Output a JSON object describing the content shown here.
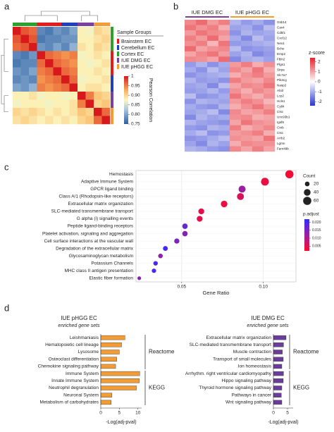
{
  "chart_data": [
    {
      "type": "heatmap",
      "panel_label": "a",
      "values": [
        [
          1,
          0.97,
          0.96,
          0.78,
          0.77,
          0.79,
          0.78,
          0.8,
          0.88,
          0.87,
          0.9,
          0.89
        ],
        [
          0.97,
          1,
          0.97,
          0.77,
          0.78,
          0.78,
          0.79,
          0.79,
          0.88,
          0.88,
          0.89,
          0.9
        ],
        [
          0.96,
          0.97,
          1,
          0.79,
          0.78,
          0.8,
          0.78,
          0.81,
          0.89,
          0.88,
          0.9,
          0.89
        ],
        [
          0.78,
          0.77,
          0.79,
          1,
          0.96,
          0.95,
          0.94,
          0.95,
          0.87,
          0.88,
          0.89,
          0.88
        ],
        [
          0.77,
          0.78,
          0.78,
          0.96,
          1,
          0.96,
          0.95,
          0.94,
          0.88,
          0.87,
          0.88,
          0.89
        ],
        [
          0.79,
          0.78,
          0.8,
          0.95,
          0.96,
          1,
          0.96,
          0.95,
          0.88,
          0.88,
          0.89,
          0.88
        ],
        [
          0.78,
          0.79,
          0.78,
          0.94,
          0.95,
          0.96,
          1,
          0.96,
          0.87,
          0.88,
          0.88,
          0.89
        ],
        [
          0.8,
          0.79,
          0.81,
          0.95,
          0.94,
          0.95,
          0.96,
          1,
          0.88,
          0.89,
          0.89,
          0.88
        ],
        [
          0.88,
          0.88,
          0.89,
          0.87,
          0.88,
          0.88,
          0.87,
          0.88,
          1,
          0.95,
          0.91,
          0.9
        ],
        [
          0.87,
          0.88,
          0.88,
          0.88,
          0.87,
          0.88,
          0.88,
          0.89,
          0.95,
          1,
          0.9,
          0.91
        ],
        [
          0.9,
          0.89,
          0.9,
          0.89,
          0.88,
          0.89,
          0.88,
          0.89,
          0.91,
          0.9,
          1,
          0.96
        ],
        [
          0.89,
          0.9,
          0.89,
          0.88,
          0.89,
          0.88,
          0.89,
          0.88,
          0.9,
          0.91,
          0.96,
          1
        ]
      ],
      "column_colors": [
        "#2ca02c",
        "#2ca02c",
        "#2ca02c",
        "#e41a1c",
        "#e41a1c",
        "#e41a1c",
        "#1f3fbf",
        "#1f3fbf",
        "#7b3fa0",
        "#7b3fa0",
        "#f39c34",
        "#f39c34"
      ],
      "legend_title": "Sample Groups",
      "groups": [
        {
          "name": "Brainstem EC",
          "color": "#e41a1c"
        },
        {
          "name": "Cerebellum EC",
          "color": "#1f3fbf"
        },
        {
          "name": "Cortex EC",
          "color": "#2ca02c"
        },
        {
          "name": "IUE DMG EC",
          "color": "#7b3fa0"
        },
        {
          "name": "IUE pHGG EC",
          "color": "#f39c34"
        }
      ],
      "colorbar_label": "Pearson Correlation",
      "zlim": [
        0.75,
        1
      ],
      "zticks": [
        1,
        {
          "value": 0.9,
          "label": "0.90"
        },
        0.95,
        0.85,
        {
          "value": 0.8,
          "label": "0.80"
        },
        0.75
      ]
    },
    {
      "type": "heatmap",
      "panel_label": "b",
      "column_groups": [
        {
          "name": "IUE DMG EC",
          "color": "#7b3fa0"
        },
        {
          "name": "IUE pHGG EC",
          "color": "#f39c34"
        }
      ],
      "categories": [
        "Gsb14",
        "Cav4",
        "Cdkf1",
        "Cxcl12",
        "Neo1",
        "Bche",
        "Emp2",
        "Fbln2",
        "Plgs1",
        "Sirpa",
        "Slc7a7",
        "Pik3cg",
        "Nasp2",
        "Abi3",
        "Lcp2",
        "Hcls1",
        "Cytl4",
        "Ctsc",
        "Unc93b1",
        "Igsf8",
        "Ctnb",
        "Ctsc",
        "Arrb2",
        "Lgmn",
        "Fam49b"
      ],
      "values": [
        [
          1.3,
          1.6,
          1.1,
          1.4,
          -0.9,
          -1.2,
          -1.0,
          -1.3
        ],
        [
          1.5,
          1.2,
          1.4,
          0.9,
          -1.1,
          -1.0,
          -1.3,
          -0.8
        ],
        [
          1.1,
          1.5,
          1.3,
          1.2,
          -1.3,
          -0.9,
          -1.1,
          -1.0
        ],
        [
          1.4,
          1.1,
          1.6,
          1.0,
          -1.0,
          -1.4,
          -0.8,
          -1.1
        ],
        [
          1.2,
          1.4,
          0.8,
          1.5,
          -1.2,
          -1.1,
          -1.0,
          -0.9
        ],
        [
          1.6,
          1.0,
          1.2,
          1.3,
          -0.8,
          -1.3,
          -1.2,
          -1.1
        ],
        [
          1.0,
          1.3,
          1.5,
          1.1,
          -1.1,
          -0.9,
          -1.4,
          -1.2
        ],
        [
          1.3,
          1.2,
          1.0,
          1.6,
          -1.4,
          -1.0,
          -0.9,
          -1.1
        ],
        [
          -1.2,
          -0.9,
          -1.3,
          -1.0,
          1.1,
          1.4,
          0.9,
          1.2
        ],
        [
          -1.0,
          -1.3,
          -0.8,
          -1.1,
          1.3,
          1.0,
          1.5,
          0.9
        ],
        [
          -1.3,
          -1.1,
          -1.0,
          -0.9,
          0.9,
          1.2,
          1.4,
          1.1
        ],
        [
          -0.9,
          -1.2,
          -1.1,
          -1.3,
          1.4,
          1.1,
          1.0,
          1.3
        ],
        [
          -1.1,
          -1.0,
          -1.4,
          -0.8,
          1.0,
          1.3,
          1.2,
          1.5
        ],
        [
          -1.2,
          -1.1,
          -0.9,
          -1.2,
          1.2,
          0.9,
          1.3,
          1.1
        ],
        [
          -0.8,
          -1.3,
          -1.2,
          -1.0,
          1.5,
          1.1,
          0.9,
          1.2
        ],
        [
          -1.3,
          -0.9,
          -1.0,
          -1.1,
          1.1,
          1.4,
          1.2,
          0.8
        ],
        [
          -1.0,
          -1.2,
          -1.3,
          -0.9,
          0.9,
          1.2,
          1.5,
          1.1
        ],
        [
          -1.1,
          -1.0,
          -0.8,
          -1.4,
          1.3,
          1.0,
          1.1,
          1.4
        ],
        [
          -1.4,
          -0.9,
          -1.1,
          -1.0,
          1.2,
          1.3,
          0.9,
          1.0
        ],
        [
          -0.9,
          -1.1,
          -1.2,
          -1.3,
          1.0,
          1.5,
          1.2,
          1.1
        ],
        [
          -1.2,
          -1.3,
          -0.9,
          -1.0,
          1.4,
          0.9,
          1.1,
          1.3
        ],
        [
          -1.0,
          -0.8,
          -1.3,
          -1.2,
          1.1,
          1.2,
          1.4,
          0.9
        ],
        [
          -1.3,
          -1.2,
          -1.0,
          -0.8,
          1.2,
          1.1,
          1.0,
          1.5
        ],
        [
          -1.1,
          -1.4,
          -0.9,
          -1.1,
          0.9,
          1.3,
          1.2,
          1.2
        ],
        [
          -0.9,
          -1.0,
          -1.2,
          -1.3,
          1.3,
          1.0,
          1.4,
          1.0
        ]
      ],
      "colorbar_label": "z-score",
      "zlim": [
        -2.4,
        2.4
      ],
      "zticks": [
        2,
        1,
        0,
        -1,
        -2
      ]
    },
    {
      "type": "dot",
      "panel_label": "c",
      "categories": [
        "Hemostasis",
        "Adaptive Immune System",
        "GPCR ligand binding",
        "Class A/1 (Rhodopsin-like receptors)",
        "Extracellular matrix organization",
        "SLC-mediated transmembrane transport",
        "G alpha (i) signalling events",
        "Peptide ligand-binding receptors",
        "Platelet activation, signaling and aggregation",
        "Cell surface interactions at the vascular wall",
        "Degradation of the extracellular matrix",
        "Glycosaminoglycan metabolism",
        "Potassium Channels",
        "MHC class II antigen presentation",
        "Elastic fiber formation"
      ],
      "values": [
        0.116,
        0.101,
        0.087,
        0.086,
        0.076,
        0.062,
        0.061,
        0.052,
        0.052,
        0.047,
        0.04,
        0.037,
        0.034,
        0.033,
        0.024
      ],
      "sizes": [
        60,
        55,
        44,
        43,
        39,
        31,
        30,
        26,
        26,
        24,
        21,
        19,
        18,
        17,
        12
      ],
      "p_adjust": [
        0.003,
        0.004,
        0.012,
        0.006,
        0.004,
        0.005,
        0.005,
        0.017,
        0.014,
        0.015,
        0.02,
        0.013,
        0.019,
        0.02,
        0.014
      ],
      "xlabel": "Gene Ratio",
      "xlim": [
        0.022,
        0.12
      ],
      "xticks": [
        0.05,
        {
          "value": 0.1,
          "label": "0.10"
        }
      ],
      "grid": true,
      "size_legend_title": "Count",
      "size_ticks": [
        20,
        40,
        60
      ],
      "color_legend_title": "p.adjust",
      "clim": [
        0.002,
        0.022
      ],
      "cticks": [
        {
          "value": 0.02,
          "label": "0.020"
        },
        0.015,
        {
          "value": 0.01,
          "label": "0.010"
        },
        0.005
      ]
    },
    {
      "type": "hbar",
      "panel_label": "d",
      "title": "IUE pHGG EC",
      "subtitle": "enriched gene sets",
      "color": "#f39c34",
      "groups": [
        {
          "name": "Reactome",
          "categories": [
            "Leishmaniasis",
            "Hematopoietic cell lineage",
            "Lysosome",
            "Osteoclast differentiation",
            "Chemokine signaling pathway"
          ],
          "values": [
            6.5,
            5.6,
            5.0,
            4.3,
            4.0
          ]
        },
        {
          "name": "KEGG",
          "categories": [
            "Immune System",
            "Innate Immune System",
            "Neutrophil degranulation",
            "Neuronal System",
            "Metabolism of carbohydrates"
          ],
          "values": [
            10.5,
            10.4,
            9.6,
            3.0,
            2.8
          ]
        }
      ],
      "xlabel": "-Log(adj-pval)",
      "xlim": [
        0,
        11
      ],
      "xticks": [
        0,
        5,
        10
      ]
    },
    {
      "type": "hbar",
      "title": "IUE DMG EC",
      "subtitle": "enriched gene sets",
      "color": "#6a3d9a",
      "groups": [
        {
          "name": "Reactome",
          "categories": [
            "Extracellular matrix organization",
            "SLC-mediated transmembrane transport",
            "Muscle contraction",
            "Transport of small molecules",
            "Ion homeostasis"
          ],
          "values": [
            4.5,
            3.6,
            3.2,
            3.5,
            3.0
          ]
        },
        {
          "name": "KEGG",
          "categories": [
            "Arrhythm. right ventricular cardiomyopathy",
            "Hippo signaling pathway",
            "Thyroid hormone signaling pathway",
            "Pathways in cancer",
            "Wnt signaling pathway"
          ],
          "values": [
            3.6,
            3.5,
            3.0,
            2.8,
            3.0
          ]
        }
      ],
      "xlabel": "-Log(adj-pval)",
      "xlim": [
        0,
        7
      ],
      "xticks": [
        0,
        5
      ]
    }
  ]
}
